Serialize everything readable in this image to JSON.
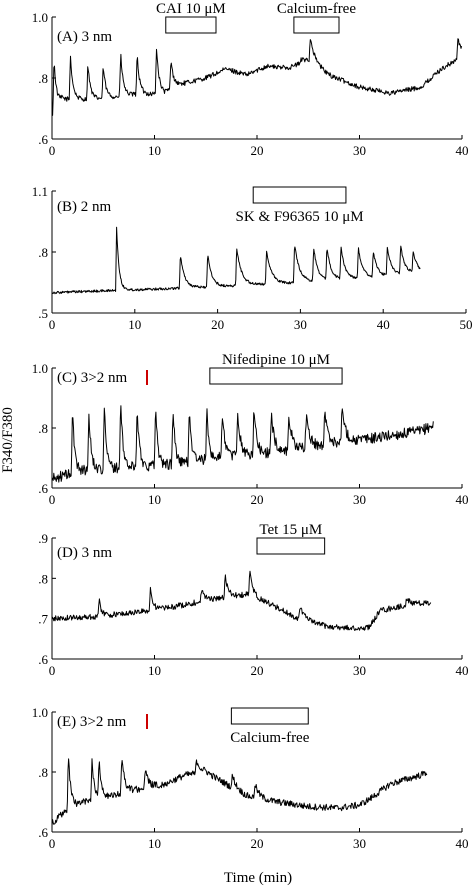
{
  "figure": {
    "ylabel": "F340/F380",
    "xlabel": "Time (min)"
  },
  "chart_data": [
    {
      "type": "line",
      "panel_label": "(A) 3 nm",
      "xlim": [
        0,
        40
      ],
      "xticks": [
        0,
        10,
        20,
        30,
        40
      ],
      "ylim": [
        0.6,
        1.0
      ],
      "yticks": [
        0.6,
        0.8,
        1.0
      ],
      "ytick_labels": [
        ".6",
        ".8",
        "1.0"
      ],
      "bars": [
        {
          "label": "CAI 10 μM",
          "x0": 11.1,
          "x1": 16.0,
          "label_pos": "above"
        },
        {
          "label": "Calcium-free",
          "x0": 23.6,
          "x1": 28.0,
          "label_pos": "above"
        }
      ],
      "trace": {
        "base": [
          [
            0,
            0.68
          ],
          [
            1,
            0.73
          ],
          [
            4,
            0.73
          ],
          [
            8,
            0.745
          ],
          [
            11,
            0.75
          ],
          [
            12,
            0.775
          ],
          [
            15,
            0.8
          ],
          [
            17,
            0.83
          ],
          [
            19,
            0.81
          ],
          [
            21,
            0.84
          ],
          [
            23,
            0.83
          ],
          [
            25,
            0.86
          ],
          [
            27,
            0.81
          ],
          [
            30,
            0.77
          ],
          [
            33,
            0.75
          ],
          [
            36,
            0.77
          ],
          [
            38,
            0.83
          ],
          [
            40,
            0.87
          ]
        ],
        "spikes": [
          [
            0.2,
            0.86,
            0.25
          ],
          [
            1.8,
            0.87,
            0.25
          ],
          [
            3.5,
            0.85,
            0.25
          ],
          [
            5.0,
            0.84,
            0.25
          ],
          [
            6.7,
            0.88,
            0.25
          ],
          [
            8.3,
            0.88,
            0.25
          ],
          [
            10.2,
            0.9,
            0.25
          ],
          [
            11.6,
            0.86,
            0.25
          ],
          [
            22.6,
            0.84,
            0.5
          ],
          [
            24.3,
            0.86,
            0.5
          ],
          [
            25.2,
            0.93,
            0.45
          ],
          [
            39.6,
            0.93,
            0.4
          ]
        ],
        "noise": 0.008
      }
    },
    {
      "type": "line",
      "panel_label": "(B) 2 nm",
      "xlim": [
        0,
        50
      ],
      "xticks": [
        0,
        10,
        20,
        30,
        40,
        50
      ],
      "ylim": [
        0.5,
        1.1
      ],
      "yticks": [
        0.5,
        0.8,
        1.1
      ],
      "ytick_labels": [
        ".5",
        ".8",
        "1.1"
      ],
      "bars": [
        {
          "label": "SK & F96365 10 μM",
          "x0": 24.3,
          "x1": 35.5,
          "label_pos": "below"
        }
      ],
      "trace": {
        "base": [
          [
            0,
            0.6
          ],
          [
            14,
            0.62
          ],
          [
            20,
            0.63
          ],
          [
            30,
            0.65
          ],
          [
            40,
            0.68
          ],
          [
            44.5,
            0.7
          ]
        ],
        "spikes": [
          [
            7.8,
            0.92,
            0.3
          ],
          [
            15.5,
            0.79,
            0.5
          ],
          [
            18.8,
            0.79,
            0.5
          ],
          [
            22.3,
            0.82,
            0.6
          ],
          [
            25.9,
            0.81,
            0.6
          ],
          [
            29.3,
            0.84,
            0.6
          ],
          [
            31.6,
            0.82,
            0.5
          ],
          [
            33.2,
            0.82,
            0.5
          ],
          [
            34.9,
            0.82,
            0.5
          ],
          [
            37.0,
            0.82,
            0.5
          ],
          [
            38.8,
            0.8,
            0.5
          ],
          [
            40.5,
            0.82,
            0.5
          ],
          [
            42.1,
            0.83,
            0.5
          ],
          [
            43.6,
            0.8,
            0.5
          ]
        ],
        "noise": 0.006
      }
    },
    {
      "type": "line",
      "panel_label": "(C) 3>2 nm",
      "xlim": [
        0,
        40
      ],
      "xticks": [
        0,
        10,
        20,
        30,
        40
      ],
      "ylim": [
        0.6,
        1.0
      ],
      "yticks": [
        0.6,
        0.8,
        1.0
      ],
      "ytick_labels": [
        ".6",
        ".8",
        "1.0"
      ],
      "marker_color": "#cc0000",
      "bars": [
        {
          "label": "Nifedipine 10 μM",
          "x0": 15.4,
          "x1": 28.3,
          "label_pos": "above"
        }
      ],
      "trace": {
        "base": [
          [
            0,
            0.63
          ],
          [
            3,
            0.66
          ],
          [
            8,
            0.67
          ],
          [
            12,
            0.68
          ],
          [
            16,
            0.7
          ],
          [
            20,
            0.71
          ],
          [
            24,
            0.73
          ],
          [
            28,
            0.75
          ],
          [
            32,
            0.77
          ],
          [
            36,
            0.79
          ],
          [
            37.2,
            0.81
          ]
        ],
        "spikes": [
          [
            2.0,
            0.86,
            0.22
          ],
          [
            3.6,
            0.86,
            0.22
          ],
          [
            5.1,
            0.87,
            0.22
          ],
          [
            6.7,
            0.89,
            0.22
          ],
          [
            8.3,
            0.88,
            0.22
          ],
          [
            10.1,
            0.88,
            0.22
          ],
          [
            11.8,
            0.87,
            0.22
          ],
          [
            13.4,
            0.87,
            0.22
          ],
          [
            15.1,
            0.86,
            0.22
          ],
          [
            16.6,
            0.85,
            0.3
          ],
          [
            18.1,
            0.86,
            0.3
          ],
          [
            19.7,
            0.86,
            0.3
          ],
          [
            21.4,
            0.85,
            0.3
          ],
          [
            23.1,
            0.84,
            0.35
          ],
          [
            24.8,
            0.84,
            0.35
          ],
          [
            26.6,
            0.85,
            0.35
          ],
          [
            28.3,
            0.87,
            0.35
          ]
        ],
        "noise": 0.018
      }
    },
    {
      "type": "line",
      "panel_label": "(D) 3 nm",
      "xlim": [
        0,
        40
      ],
      "xticks": [
        0,
        10,
        20,
        30,
        40
      ],
      "ylim": [
        0.6,
        0.9
      ],
      "yticks": [
        0.6,
        0.7,
        0.8,
        0.9
      ],
      "ytick_labels": [
        ".6",
        ".7",
        ".8",
        ".9"
      ],
      "bars": [
        {
          "label": "Tet 15 μM",
          "x0": 20.0,
          "x1": 26.6,
          "label_pos": "above"
        }
      ],
      "trace": {
        "base": [
          [
            0,
            0.7
          ],
          [
            4,
            0.705
          ],
          [
            8,
            0.715
          ],
          [
            12,
            0.73
          ],
          [
            16,
            0.75
          ],
          [
            19,
            0.76
          ],
          [
            21,
            0.74
          ],
          [
            24,
            0.7
          ],
          [
            27,
            0.68
          ],
          [
            30,
            0.675
          ],
          [
            31,
            0.68
          ],
          [
            32,
            0.72
          ],
          [
            34,
            0.73
          ],
          [
            37,
            0.74
          ]
        ],
        "spikes": [
          [
            4.6,
            0.745,
            0.25
          ],
          [
            9.6,
            0.775,
            0.25
          ],
          [
            14.6,
            0.775,
            0.3
          ],
          [
            16.9,
            0.805,
            0.3
          ],
          [
            19.3,
            0.82,
            0.3
          ],
          [
            24.2,
            0.735,
            0.4
          ],
          [
            34.6,
            0.75,
            0.5
          ]
        ],
        "noise": 0.007
      }
    },
    {
      "type": "line",
      "panel_label": "(E) 3>2 nm",
      "xlim": [
        0,
        40
      ],
      "xticks": [
        0,
        10,
        20,
        30,
        40
      ],
      "ylim": [
        0.6,
        1.0
      ],
      "yticks": [
        0.6,
        0.8,
        1.0
      ],
      "ytick_labels": [
        ".6",
        ".8",
        "1.0"
      ],
      "marker_color": "#cc0000",
      "bars": [
        {
          "label": "Calcium-free",
          "x0": 17.5,
          "x1": 25.0,
          "label_pos": "below"
        }
      ],
      "trace": {
        "base": [
          [
            0,
            0.63
          ],
          [
            1,
            0.66
          ],
          [
            3,
            0.7
          ],
          [
            6,
            0.72
          ],
          [
            8,
            0.74
          ],
          [
            11,
            0.76
          ],
          [
            13,
            0.79
          ],
          [
            15,
            0.8
          ],
          [
            17,
            0.76
          ],
          [
            19,
            0.72
          ],
          [
            22,
            0.7
          ],
          [
            25,
            0.685
          ],
          [
            28,
            0.68
          ],
          [
            30,
            0.69
          ],
          [
            31,
            0.71
          ],
          [
            33,
            0.76
          ],
          [
            36,
            0.79
          ],
          [
            36.6,
            0.8
          ]
        ],
        "spikes": [
          [
            1.6,
            0.86,
            0.25
          ],
          [
            3.9,
            0.84,
            0.25
          ],
          [
            4.6,
            0.83,
            0.25
          ],
          [
            6.8,
            0.85,
            0.3
          ],
          [
            9.1,
            0.81,
            0.3
          ],
          [
            14.1,
            0.84,
            0.4
          ],
          [
            17.6,
            0.79,
            0.4
          ],
          [
            19.8,
            0.76,
            0.4
          ]
        ],
        "noise": 0.011
      }
    }
  ]
}
